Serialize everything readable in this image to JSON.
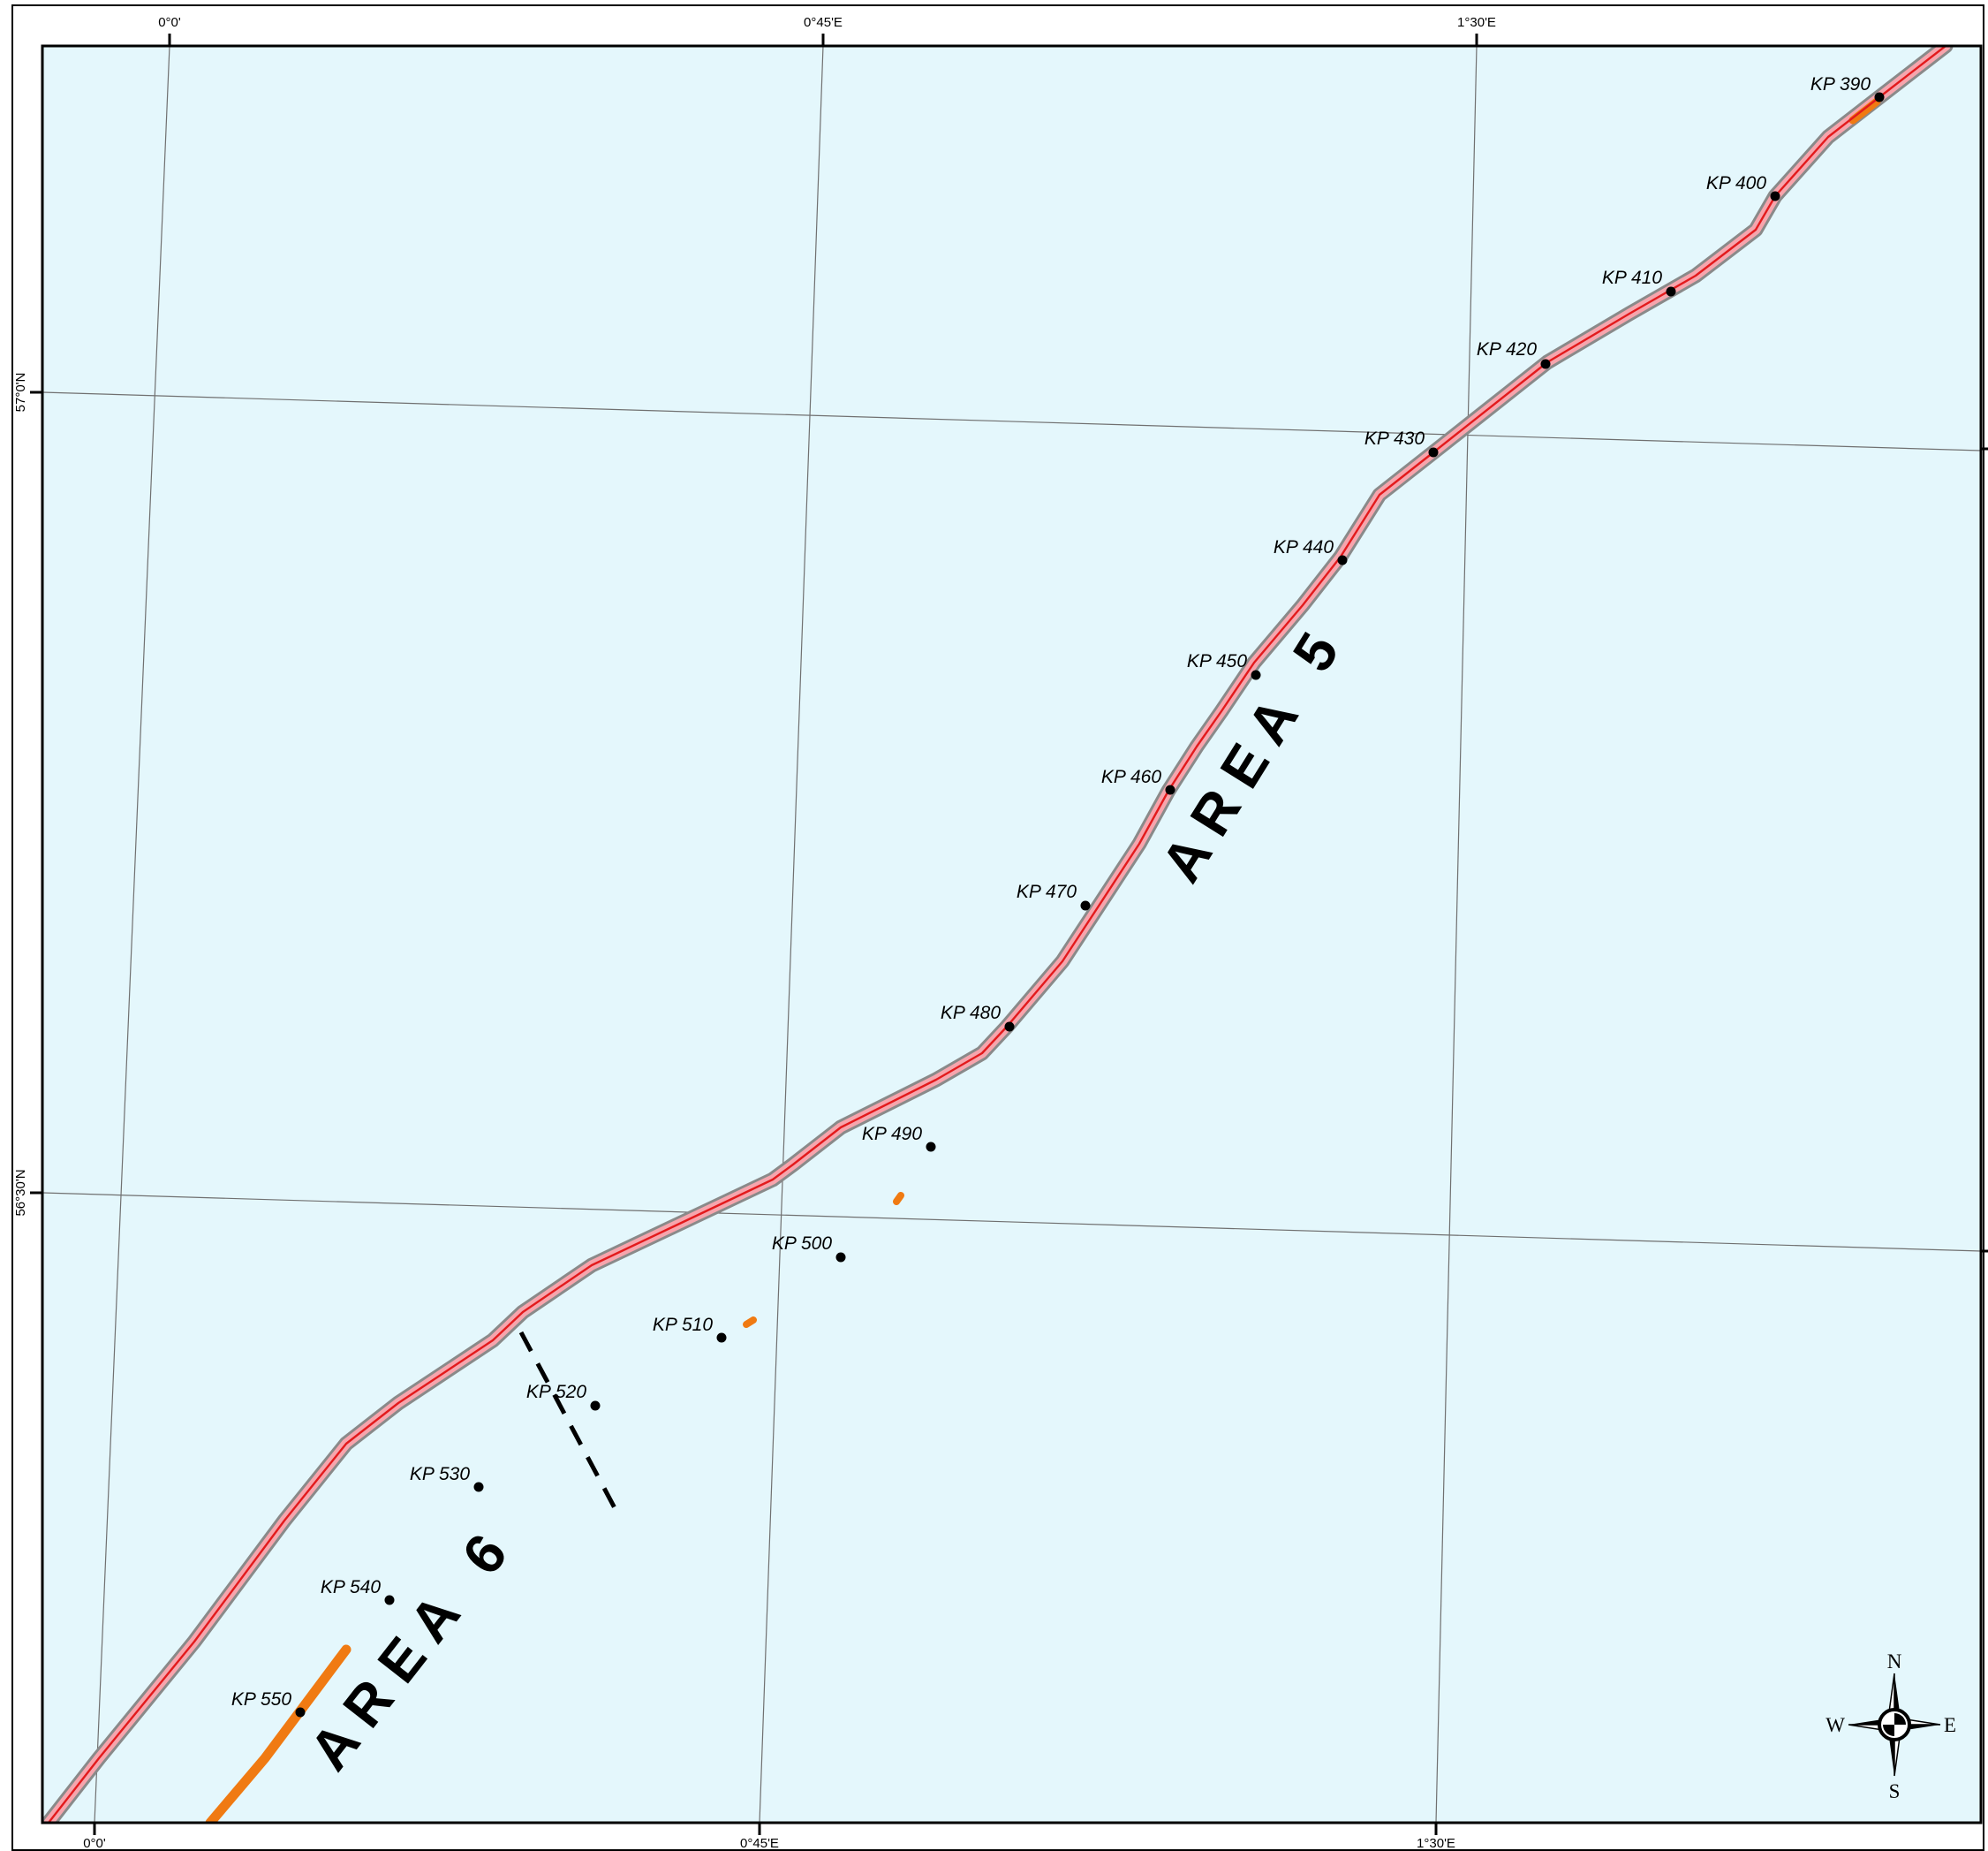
{
  "graticule": {
    "top_lon_labels": [
      "0°0'",
      "0°45'E",
      "1°30'E"
    ],
    "bottom_lon_labels": [
      "0°0'",
      "0°45'E",
      "1°30'E"
    ],
    "left_lat_labels": [
      "57°0'N",
      "56°30'N"
    ]
  },
  "route": {
    "kp_labels": [
      "KP 390",
      "KP 400",
      "KP 410",
      "KP 420",
      "KP 430",
      "KP 440",
      "KP 450",
      "KP 460",
      "KP 470",
      "KP 480",
      "KP 490",
      "KP 500",
      "KP 510",
      "KP 520",
      "KP 530",
      "KP 540",
      "KP 550"
    ]
  },
  "areas": {
    "area5": "A R E A   5",
    "area6": "A R E A   6"
  },
  "compass": {
    "n": "N",
    "e": "E",
    "s": "S",
    "w": "W"
  },
  "colors": {
    "sea": "#e4f7fc",
    "route_line": "#e31a1c",
    "route_corridor": "#f6a5ad",
    "route_buffer": "#8a8a8a",
    "highlight_segment": "#f07a12",
    "graticule": "#707070"
  }
}
